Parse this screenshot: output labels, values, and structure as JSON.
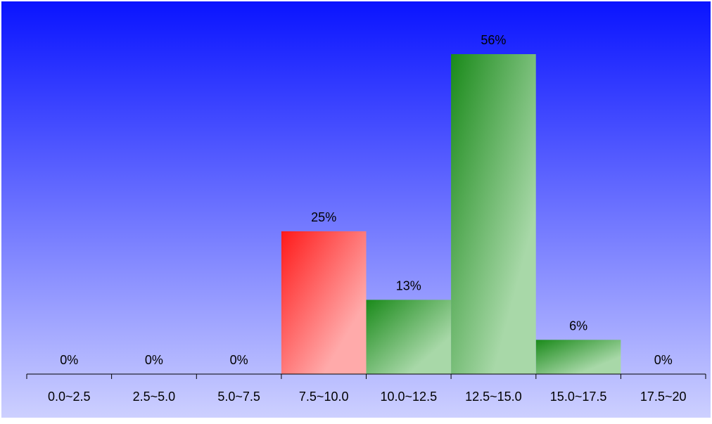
{
  "chart_data": {
    "type": "bar",
    "categories": [
      "0.0~2.5",
      "2.5~5.0",
      "5.0~7.5",
      "7.5~10.0",
      "10.0~12.5",
      "12.5~15.0",
      "15.0~17.5",
      "17.5~20"
    ],
    "values": [
      0,
      0,
      0,
      25,
      13,
      56,
      6,
      0
    ],
    "data_labels": [
      "0%",
      "0%",
      "0%",
      "25%",
      "13%",
      "56%",
      "6%",
      "0%"
    ],
    "value_unit": "%",
    "ylim": [
      0,
      60
    ],
    "grid": false,
    "legend": "none",
    "colors": {
      "background_top": "#0a14ff",
      "background_bottom": "#cdd0ff",
      "highlight_bar": "#ff1a1a",
      "highlight_bar_light": "#ffaaaa",
      "bar": "#1a8a1a",
      "bar_light": "#a8d8a8",
      "axis": "#000000"
    },
    "highlight_index": 3
  }
}
